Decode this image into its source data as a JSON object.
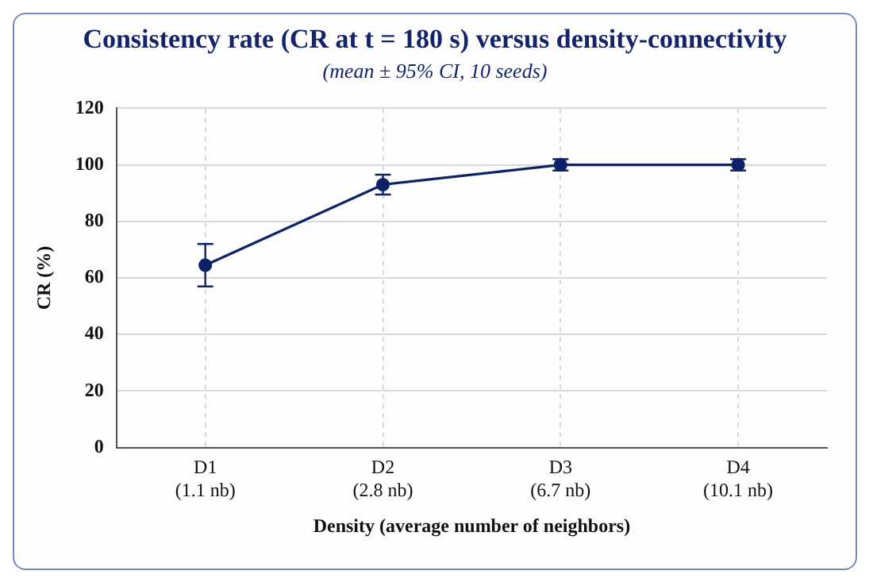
{
  "chart_data": {
    "type": "line",
    "title": "Consistency rate (CR at t = 180 s) versus density-connectivity",
    "subtitle": "(mean ± 95% CI, 10 seeds)",
    "xlabel": "Density (average number of neighbors)",
    "ylabel": "CR (%)",
    "categories": [
      "D1\n(1.1 nb)",
      "D2\n(2.8 nb)",
      "D3\n(6.7 nb)",
      "D4\n(10.1 nb)"
    ],
    "series": [
      {
        "color": "#0d2366",
        "values": [
          64.5,
          93,
          100,
          100
        ],
        "errors": [
          7.5,
          3.5,
          2,
          2
        ]
      }
    ],
    "ylim": [
      0,
      120
    ],
    "yticks": [
      0,
      20,
      40,
      60,
      80,
      100,
      120
    ],
    "grid": true,
    "legend": false,
    "marker": "circle",
    "line_style": "solid"
  }
}
